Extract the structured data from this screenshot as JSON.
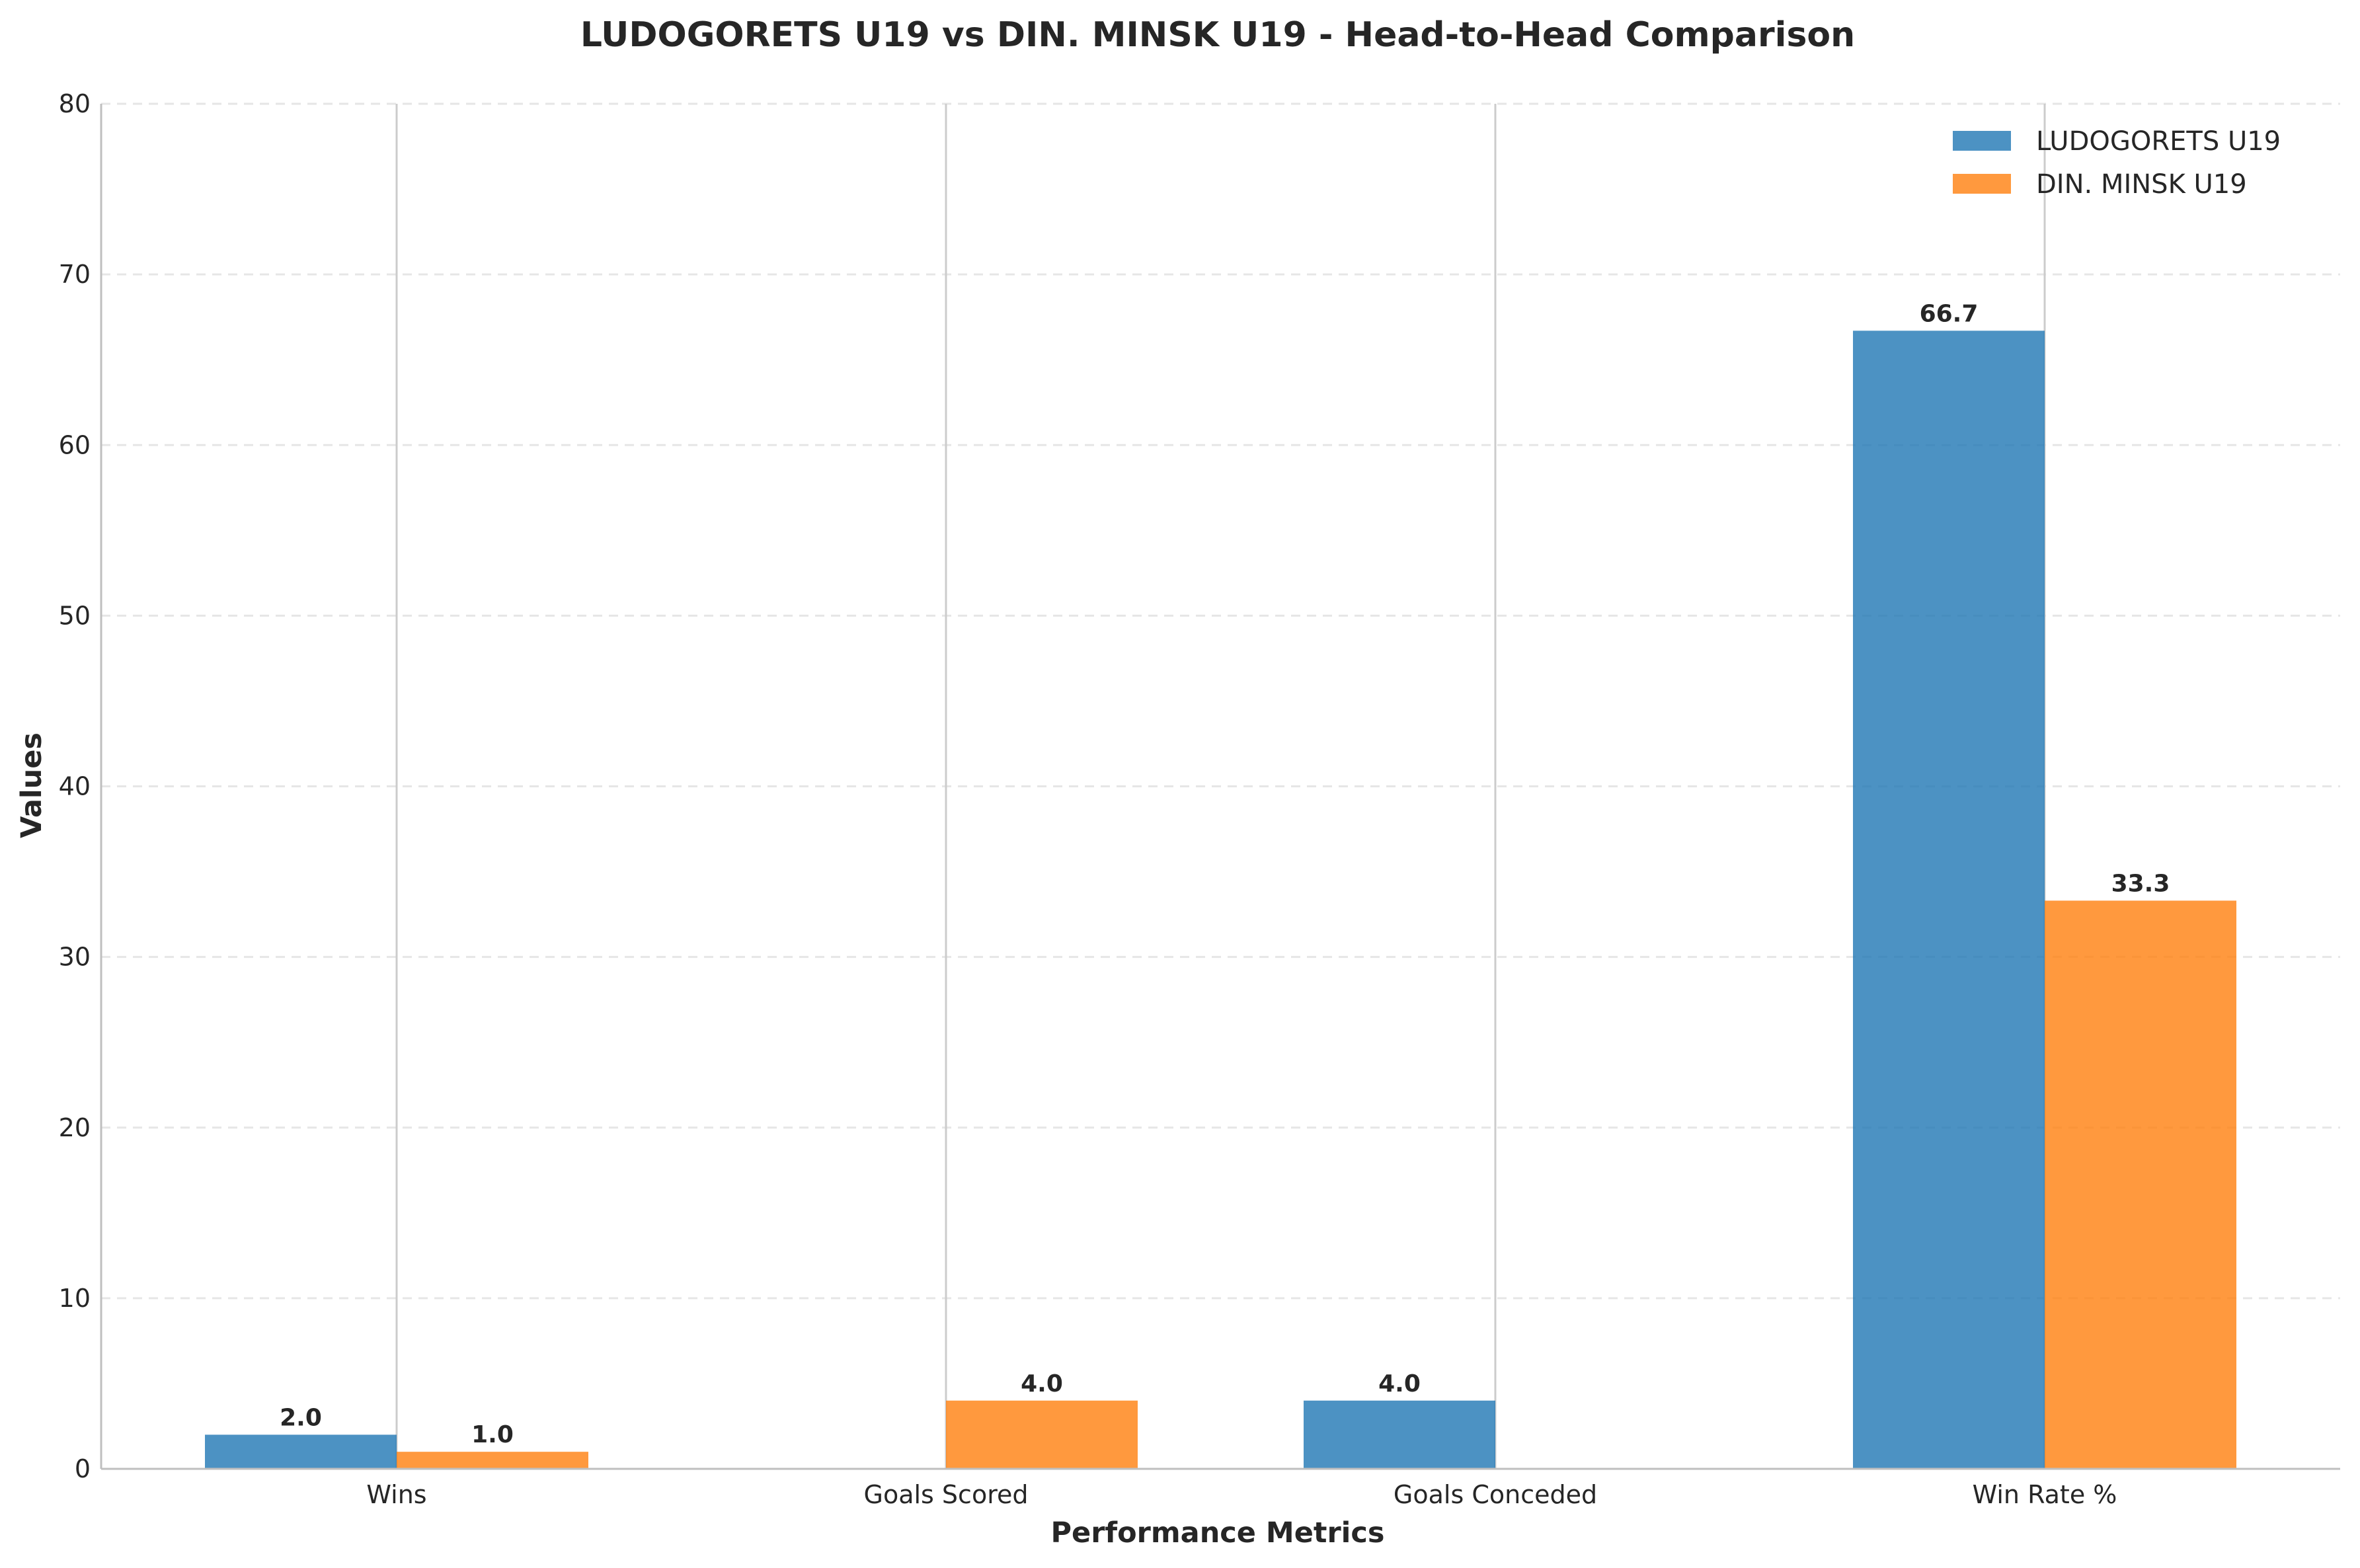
{
  "chart_data": {
    "type": "bar",
    "title": "LUDOGORETS U19 vs DIN. MINSK U19 - Head-to-Head Comparison",
    "xlabel": "Performance Metrics",
    "ylabel": "Values",
    "categories": [
      "Wins",
      "Goals Scored",
      "Goals Conceded",
      "Win Rate %"
    ],
    "series": [
      {
        "name": "LUDOGORETS U19",
        "color": "#1f77b4",
        "values": [
          2.0,
          0,
          4.0,
          66.7
        ],
        "labels": [
          "2.0",
          null,
          "4.0",
          "66.7"
        ]
      },
      {
        "name": "DIN. MINSK U19",
        "color": "#ff7f0e",
        "values": [
          1.0,
          4.0,
          0,
          33.3
        ],
        "labels": [
          "1.0",
          "4.0",
          null,
          "33.3"
        ]
      }
    ],
    "ylim": [
      0,
      80
    ],
    "yticks": [
      "0",
      "10",
      "20",
      "30",
      "40",
      "50",
      "60",
      "70",
      "80"
    ],
    "grid": true,
    "legend_position": "top-right"
  }
}
